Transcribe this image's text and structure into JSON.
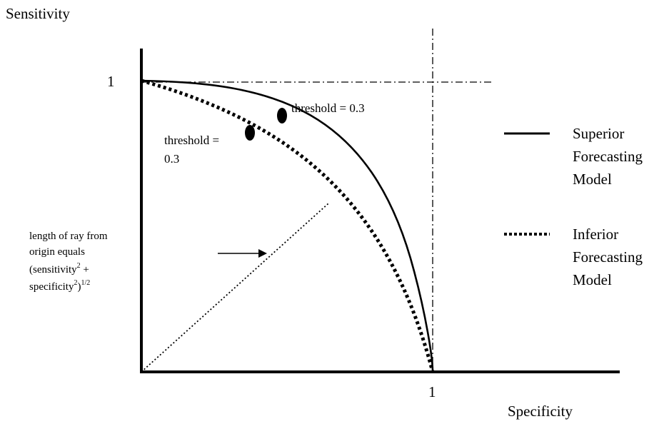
{
  "axes": {
    "y_label": "Sensitivity",
    "x_label": "Specificity",
    "y_tick": "1",
    "x_tick": "1"
  },
  "annotations": {
    "superior_threshold": "threshold = 0.3",
    "inferior_threshold_line1": "threshold =",
    "inferior_threshold_line2": "0.3"
  },
  "ray_note": {
    "line1": "length of ray from",
    "line2": "origin equals",
    "line3_main": "(sensitivity",
    "line3_sup": "2",
    "line3_tail": " +",
    "line4_main": "specificity",
    "line4_sup": "2",
    "line4_mid": ")",
    "line4_sup2": "1/2"
  },
  "legend": {
    "superior": [
      "Superior",
      "Forecasting",
      "Model"
    ],
    "inferior": [
      "Inferior",
      "Forecasting",
      "Model"
    ]
  }
}
